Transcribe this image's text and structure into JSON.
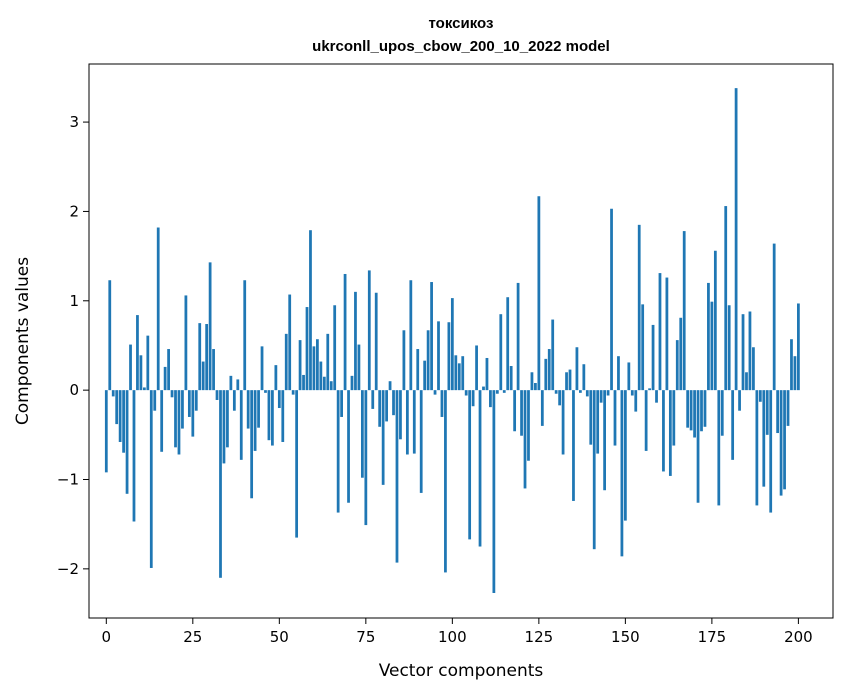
{
  "chart_data": {
    "type": "bar",
    "title": "токсикоз",
    "subtitle": "ukrconll_upos_cbow_200_10_2022 model",
    "xlabel": "Vector components",
    "ylabel": "Components values",
    "xlim": [
      -5,
      210
    ],
    "ylim": [
      -2.55,
      3.65
    ],
    "xticks": [
      0,
      25,
      50,
      75,
      100,
      125,
      150,
      175,
      200
    ],
    "yticks": [
      -2,
      -1,
      0,
      1,
      2,
      3
    ],
    "ytick_labels": [
      "−2",
      "−1",
      "0",
      "1",
      "2",
      "3"
    ],
    "grid": false,
    "bar_color": "#1f77b4",
    "values": [
      -0.92,
      1.23,
      -0.07,
      -0.38,
      -0.58,
      -0.7,
      -1.16,
      0.51,
      -1.47,
      0.84,
      0.39,
      0.03,
      0.61,
      -1.99,
      -0.23,
      1.82,
      -0.69,
      0.26,
      0.46,
      -0.08,
      -0.64,
      -0.72,
      -0.43,
      1.06,
      -0.3,
      -0.52,
      -0.23,
      0.75,
      0.32,
      0.74,
      1.43,
      0.46,
      -0.11,
      -2.1,
      -0.82,
      -0.64,
      0.16,
      -0.23,
      0.12,
      -0.78,
      1.23,
      -0.43,
      -1.21,
      -0.68,
      -0.42,
      0.49,
      -0.03,
      -0.56,
      -0.62,
      0.28,
      -0.2,
      -0.58,
      0.63,
      1.07,
      -0.05,
      -1.65,
      0.56,
      0.17,
      0.93,
      1.79,
      0.49,
      0.57,
      0.32,
      0.15,
      0.63,
      0.1,
      0.95,
      -1.37,
      -0.3,
      1.3,
      -1.26,
      0.16,
      1.1,
      0.51,
      -0.98,
      -1.51,
      1.34,
      -0.21,
      1.09,
      -0.41,
      -1.06,
      -0.35,
      0.1,
      -0.28,
      -1.93,
      -0.55,
      0.67,
      -0.72,
      1.23,
      -0.71,
      0.46,
      -1.15,
      0.33,
      0.67,
      1.21,
      -0.05,
      0.77,
      -0.3,
      -2.04,
      0.76,
      1.03,
      0.39,
      0.3,
      0.38,
      -0.06,
      -1.67,
      -0.18,
      0.5,
      -1.75,
      0.04,
      0.36,
      -0.19,
      -2.27,
      -0.04,
      0.85,
      -0.03,
      1.04,
      0.27,
      -0.46,
      1.2,
      -0.51,
      -1.1,
      -0.79,
      0.2,
      0.08,
      2.17,
      -0.4,
      0.35,
      0.46,
      0.79,
      -0.04,
      -0.17,
      -0.72,
      0.2,
      0.23,
      -1.24,
      0.48,
      -0.03,
      0.29,
      -0.07,
      -0.61,
      -1.78,
      -0.71,
      -0.14,
      -1.12,
      -0.06,
      2.03,
      -0.62,
      0.38,
      -1.86,
      -1.46,
      0.31,
      -0.06,
      -0.24,
      1.85,
      0.96,
      -0.68,
      0.02,
      0.73,
      -0.14,
      1.31,
      -0.91,
      1.26,
      -0.96,
      -0.62,
      0.56,
      0.81,
      1.78,
      -0.42,
      -0.45,
      -0.53,
      -1.26,
      -0.46,
      -0.41,
      1.2,
      0.99,
      1.56,
      -1.29,
      -0.51,
      2.06,
      0.95,
      -0.78,
      3.38,
      -0.23,
      0.85,
      0.2,
      0.88,
      0.48,
      -1.29,
      -0.13,
      -1.08,
      -0.5,
      -1.37,
      1.64,
      -0.48,
      -1.18,
      -1.11,
      -0.4,
      0.57,
      0.38,
      0.97
    ]
  }
}
